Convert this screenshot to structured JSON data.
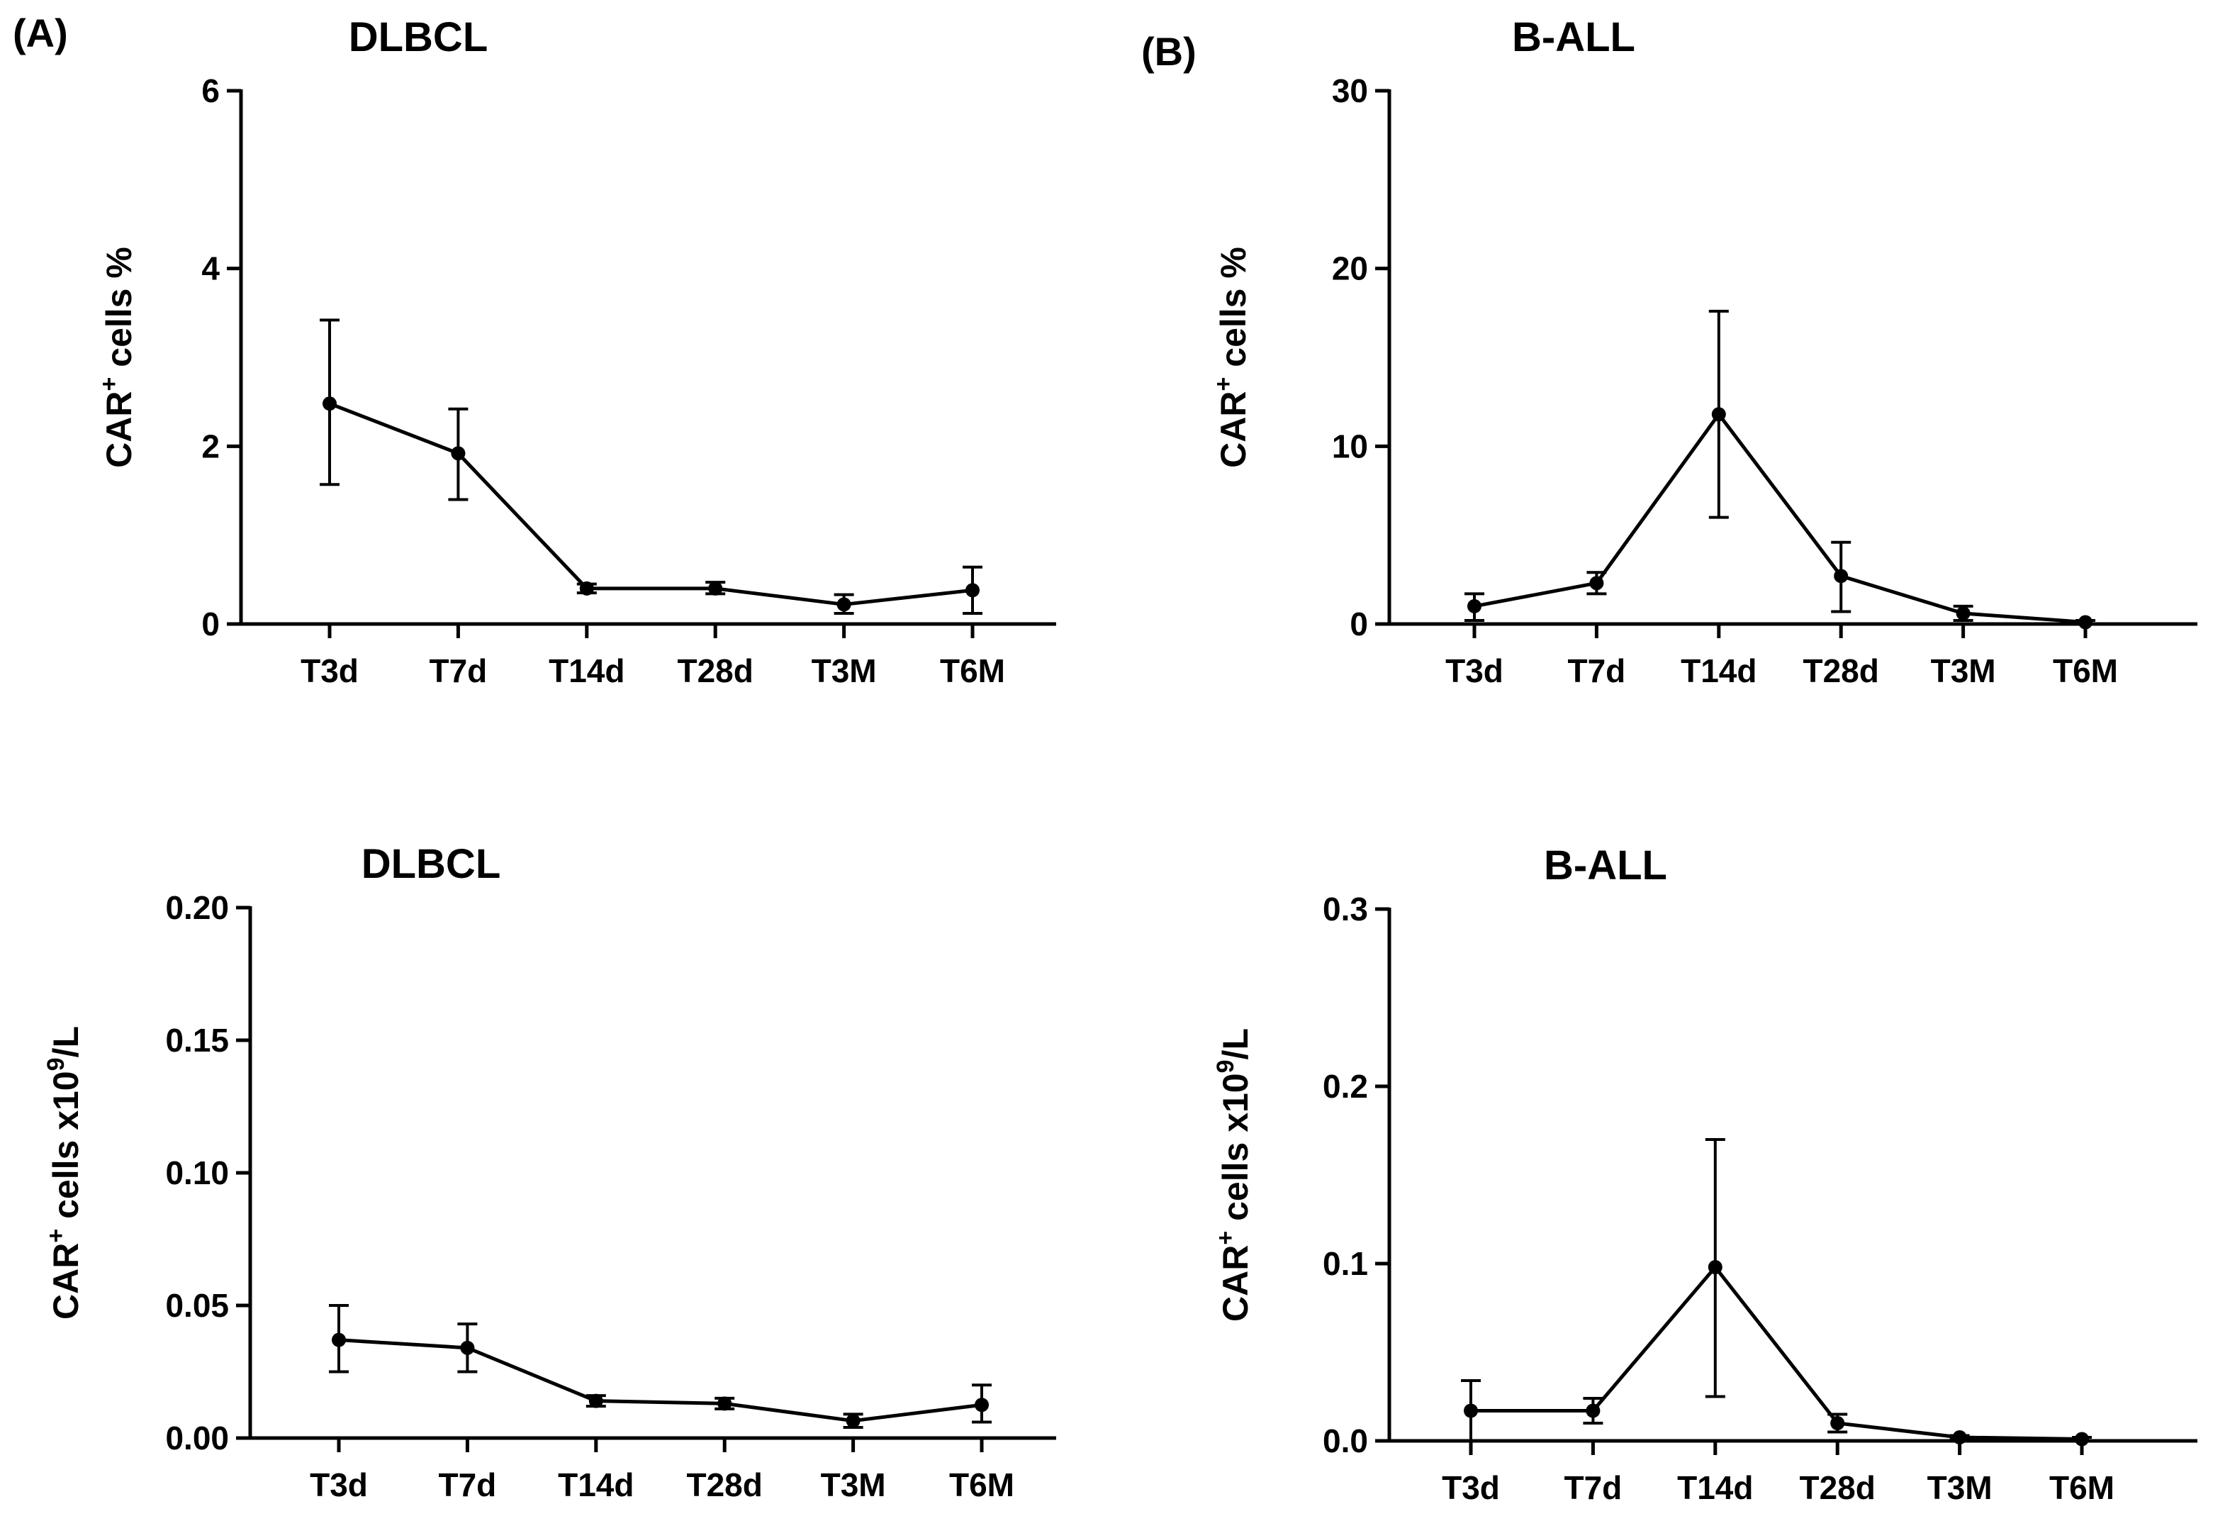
{
  "panels": {
    "a": "(A)",
    "b": "(B)"
  },
  "colors": {
    "line": "#000000",
    "background": "#ffffff"
  },
  "chart_data": [
    {
      "type": "line",
      "title": "DLBCL",
      "ylabel": "CAR+ cells %",
      "ylabel_parts": [
        "CAR",
        "+",
        " cells %"
      ],
      "categories": [
        "T3d",
        "T7d",
        "T14d",
        "T28d",
        "T3M",
        "T6M"
      ],
      "values": [
        2.48,
        1.92,
        0.4,
        0.4,
        0.22,
        0.38
      ],
      "error_low": [
        1.57,
        1.4,
        0.35,
        0.34,
        0.12,
        0.12
      ],
      "error_high": [
        3.42,
        2.42,
        0.45,
        0.47,
        0.33,
        0.64
      ],
      "ylim": [
        0,
        6
      ],
      "yticks": [
        0,
        2,
        4,
        6
      ],
      "ytick_labels": [
        "0",
        "2",
        "4",
        "6"
      ]
    },
    {
      "type": "line",
      "title": "B-ALL",
      "ylabel": "CAR+ cells %",
      "ylabel_parts": [
        "CAR",
        "+",
        " cells %"
      ],
      "categories": [
        "T3d",
        "T7d",
        "T14d",
        "T28d",
        "T3M",
        "T6M"
      ],
      "values": [
        1.0,
        2.3,
        11.8,
        2.7,
        0.6,
        0.1
      ],
      "error_low": [
        0.2,
        1.7,
        6.0,
        0.7,
        0.2,
        0.0
      ],
      "error_high": [
        1.7,
        2.9,
        17.6,
        4.6,
        1.0,
        0.2
      ],
      "ylim": [
        0,
        30
      ],
      "yticks": [
        0,
        10,
        20,
        30
      ],
      "ytick_labels": [
        "0",
        "10",
        "20",
        "30"
      ]
    },
    {
      "type": "line",
      "title": "DLBCL",
      "ylabel": "CAR+ cells x10^9/L",
      "ylabel_parts": [
        "CAR",
        "+",
        " cells x10",
        "9",
        "/L"
      ],
      "categories": [
        "T3d",
        "T7d",
        "T14d",
        "T28d",
        "T3M",
        "T6M"
      ],
      "values": [
        0.037,
        0.034,
        0.014,
        0.013,
        0.0065,
        0.0125
      ],
      "error_low": [
        0.025,
        0.025,
        0.012,
        0.011,
        0.004,
        0.006
      ],
      "error_high": [
        0.05,
        0.043,
        0.016,
        0.015,
        0.009,
        0.02
      ],
      "ylim": [
        0,
        0.2
      ],
      "yticks": [
        0,
        0.05,
        0.1,
        0.15,
        0.2
      ],
      "ytick_labels": [
        "0.00",
        "0.05",
        "0.10",
        "0.15",
        "0.20"
      ]
    },
    {
      "type": "line",
      "title": "B-ALL",
      "ylabel": "CAR+ cells x10^9/L",
      "ylabel_parts": [
        "CAR",
        "+",
        " cells x10",
        "9",
        "/L"
      ],
      "categories": [
        "T3d",
        "T7d",
        "T14d",
        "T28d",
        "T3M",
        "T6M"
      ],
      "values": [
        0.017,
        0.017,
        0.098,
        0.01,
        0.002,
        0.001
      ],
      "error_low": [
        0.0,
        0.01,
        0.025,
        0.005,
        0.001,
        0.0
      ],
      "error_high": [
        0.034,
        0.024,
        0.17,
        0.015,
        0.003,
        0.002
      ],
      "ylim": [
        0,
        0.3
      ],
      "yticks": [
        0,
        0.1,
        0.2,
        0.3
      ],
      "ytick_labels": [
        "0.0",
        "0.1",
        "0.2",
        "0.3"
      ]
    }
  ]
}
